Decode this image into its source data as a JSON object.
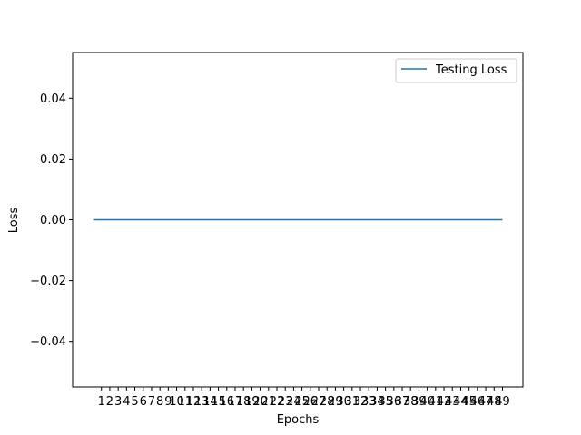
{
  "chart_data": {
    "type": "line",
    "title": "",
    "xlabel": "Epochs",
    "ylabel": "Loss",
    "x": [
      0,
      1,
      2,
      3,
      4,
      5,
      6,
      7,
      8,
      9,
      10,
      11,
      12,
      13,
      14,
      15,
      16,
      17,
      18,
      19,
      20,
      21,
      22,
      23,
      24,
      25,
      26,
      27,
      28,
      29,
      30,
      31,
      32,
      33,
      34,
      35,
      36,
      37,
      38,
      39,
      40,
      41,
      42,
      43,
      44,
      45,
      46,
      47,
      48,
      49
    ],
    "x_tick_labels": [
      "1",
      "2",
      "3",
      "4",
      "5",
      "6",
      "7",
      "8",
      "9",
      "10",
      "11",
      "12",
      "13",
      "14",
      "15",
      "16",
      "17",
      "18",
      "19",
      "20",
      "21",
      "22",
      "23",
      "24",
      "25",
      "26",
      "27",
      "28",
      "29",
      "30",
      "31",
      "32",
      "33",
      "34",
      "35",
      "36",
      "37",
      "38",
      "39",
      "40",
      "41",
      "42",
      "43",
      "44",
      "45",
      "46",
      "47",
      "48",
      "49"
    ],
    "x_tick_positions": [
      1,
      2,
      3,
      4,
      5,
      6,
      7,
      8,
      9,
      10,
      11,
      12,
      13,
      14,
      15,
      16,
      17,
      18,
      19,
      20,
      21,
      22,
      23,
      24,
      25,
      26,
      27,
      28,
      29,
      30,
      31,
      32,
      33,
      34,
      35,
      36,
      37,
      38,
      39,
      40,
      41,
      42,
      43,
      44,
      45,
      46,
      47,
      48,
      49
    ],
    "xlim": [
      -2.45,
      51.45
    ],
    "ylim": [
      -0.055,
      0.055
    ],
    "y_ticks": [
      -0.04,
      -0.02,
      0.0,
      0.02,
      0.04
    ],
    "y_tick_labels": [
      "−0.04",
      "−0.02",
      "0.00",
      "0.02",
      "0.04"
    ],
    "series": [
      {
        "name": "Testing Loss",
        "color": "#1f77b4",
        "values": [
          0,
          0,
          0,
          0,
          0,
          0,
          0,
          0,
          0,
          0,
          0,
          0,
          0,
          0,
          0,
          0,
          0,
          0,
          0,
          0,
          0,
          0,
          0,
          0,
          0,
          0,
          0,
          0,
          0,
          0,
          0,
          0,
          0,
          0,
          0,
          0,
          0,
          0,
          0,
          0,
          0,
          0,
          0,
          0,
          0,
          0,
          0,
          0,
          0,
          0
        ]
      }
    ],
    "grid": false,
    "legend_position": "upper-right"
  }
}
